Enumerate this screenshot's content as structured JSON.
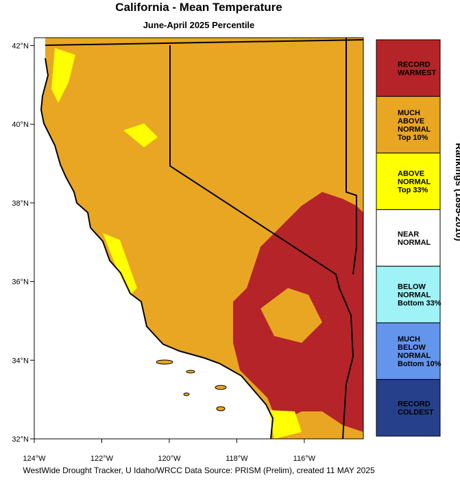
{
  "title": "California - Mean Temperature",
  "subtitle": "June-April 2025 Percentile",
  "map": {
    "xlim": [
      -124,
      -114.25
    ],
    "ylim": [
      32,
      42.2
    ],
    "xticks": [
      {
        "value": -124,
        "label": "124°W"
      },
      {
        "value": -122,
        "label": "122°W"
      },
      {
        "value": -120,
        "label": "120°W"
      },
      {
        "value": -118,
        "label": "118°W"
      },
      {
        "value": -116,
        "label": "116°W"
      }
    ],
    "yticks": [
      {
        "value": 32,
        "label": "32°N"
      },
      {
        "value": 34,
        "label": "34°N"
      },
      {
        "value": 36,
        "label": "36°N"
      },
      {
        "value": 38,
        "label": "38°N"
      },
      {
        "value": 40,
        "label": "40°N"
      },
      {
        "value": 42,
        "label": "42°N"
      }
    ]
  },
  "legend": {
    "title": "Rankings (1895-2010)",
    "items": [
      {
        "label": [
          "RECORD",
          "WARMEST"
        ],
        "color": "#b52428"
      },
      {
        "label": [
          "MUCH",
          "ABOVE",
          "NORMAL",
          "Top 10%"
        ],
        "color": "#e9a623"
      },
      {
        "label": [
          "ABOVE",
          "NORMAL",
          "Top 33%"
        ],
        "color": "#ffff00"
      },
      {
        "label": [
          "NEAR",
          "NORMAL"
        ],
        "color": "#ffffff"
      },
      {
        "label": [
          "BELOW",
          "NORMAL",
          "Bottom 33%"
        ],
        "color": "#9ff3f7"
      },
      {
        "label": [
          "MUCH",
          "BELOW",
          "NORMAL",
          "Bottom 10%"
        ],
        "color": "#6495ed"
      },
      {
        "label": [
          "RECORD",
          "COLDEST"
        ],
        "color": "#27408b"
      }
    ]
  },
  "footer": "WestWide Drought Tracker, U Idaho/WRCC Data Source: PRISM (Prelim), created 11 MAY 2025"
}
